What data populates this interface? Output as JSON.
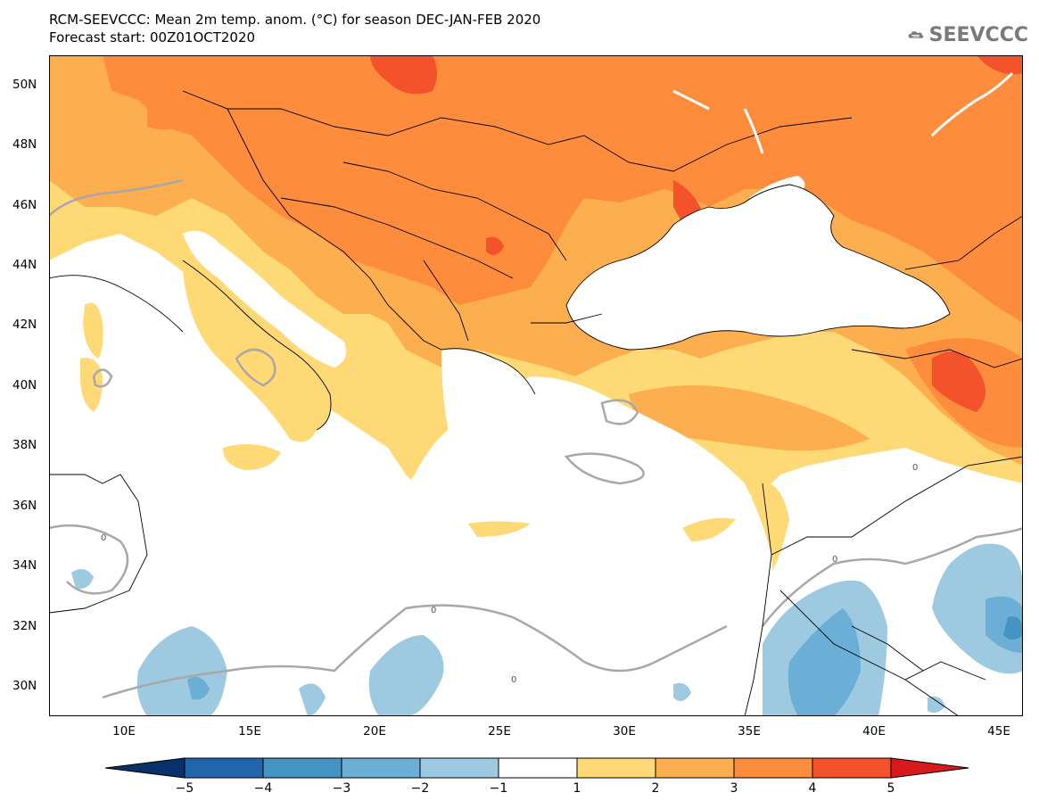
{
  "header": {
    "title": "RCM-SEEVCCC: Mean 2m temp. anom. (°C) for season DEC-JAN-FEB 2020",
    "subtitle": "Forecast start: 00Z01OCT2020"
  },
  "logo": {
    "text": "SEEVCCC",
    "icon": "cloud-icon"
  },
  "map": {
    "lat_labels": [
      "50N",
      "48N",
      "46N",
      "44N",
      "42N",
      "40N",
      "38N",
      "36N",
      "34N",
      "32N",
      "30N"
    ],
    "lon_labels": [
      "10E",
      "15E",
      "20E",
      "25E",
      "30E",
      "35E",
      "40E",
      "45E"
    ],
    "lat_range": [
      29,
      51
    ],
    "lon_range": [
      6.8,
      45.8
    ],
    "contour_label": "0",
    "colors": {
      "land_anomaly_1_2": "#fed976",
      "land_anomaly_2_3": "#fdae4f",
      "land_anomaly_3_4": "#fd8d3c",
      "land_anomaly_4_5": "#f4522a",
      "neg_1_2": "#9ecae1",
      "neg_2_3": "#6baed6",
      "neg_3_4": "#3182bd"
    }
  },
  "colorbar": {
    "tick_labels": [
      "−5",
      "−4",
      "−3",
      "−2",
      "−1",
      "1",
      "2",
      "3",
      "4",
      "5"
    ],
    "colors": [
      "#08306b",
      "#2166ac",
      "#4393c3",
      "#6baed6",
      "#9ecae1",
      "#ffffff",
      "#fed976",
      "#fdae4f",
      "#fd8d3c",
      "#f4522a",
      "#d7191c"
    ]
  }
}
